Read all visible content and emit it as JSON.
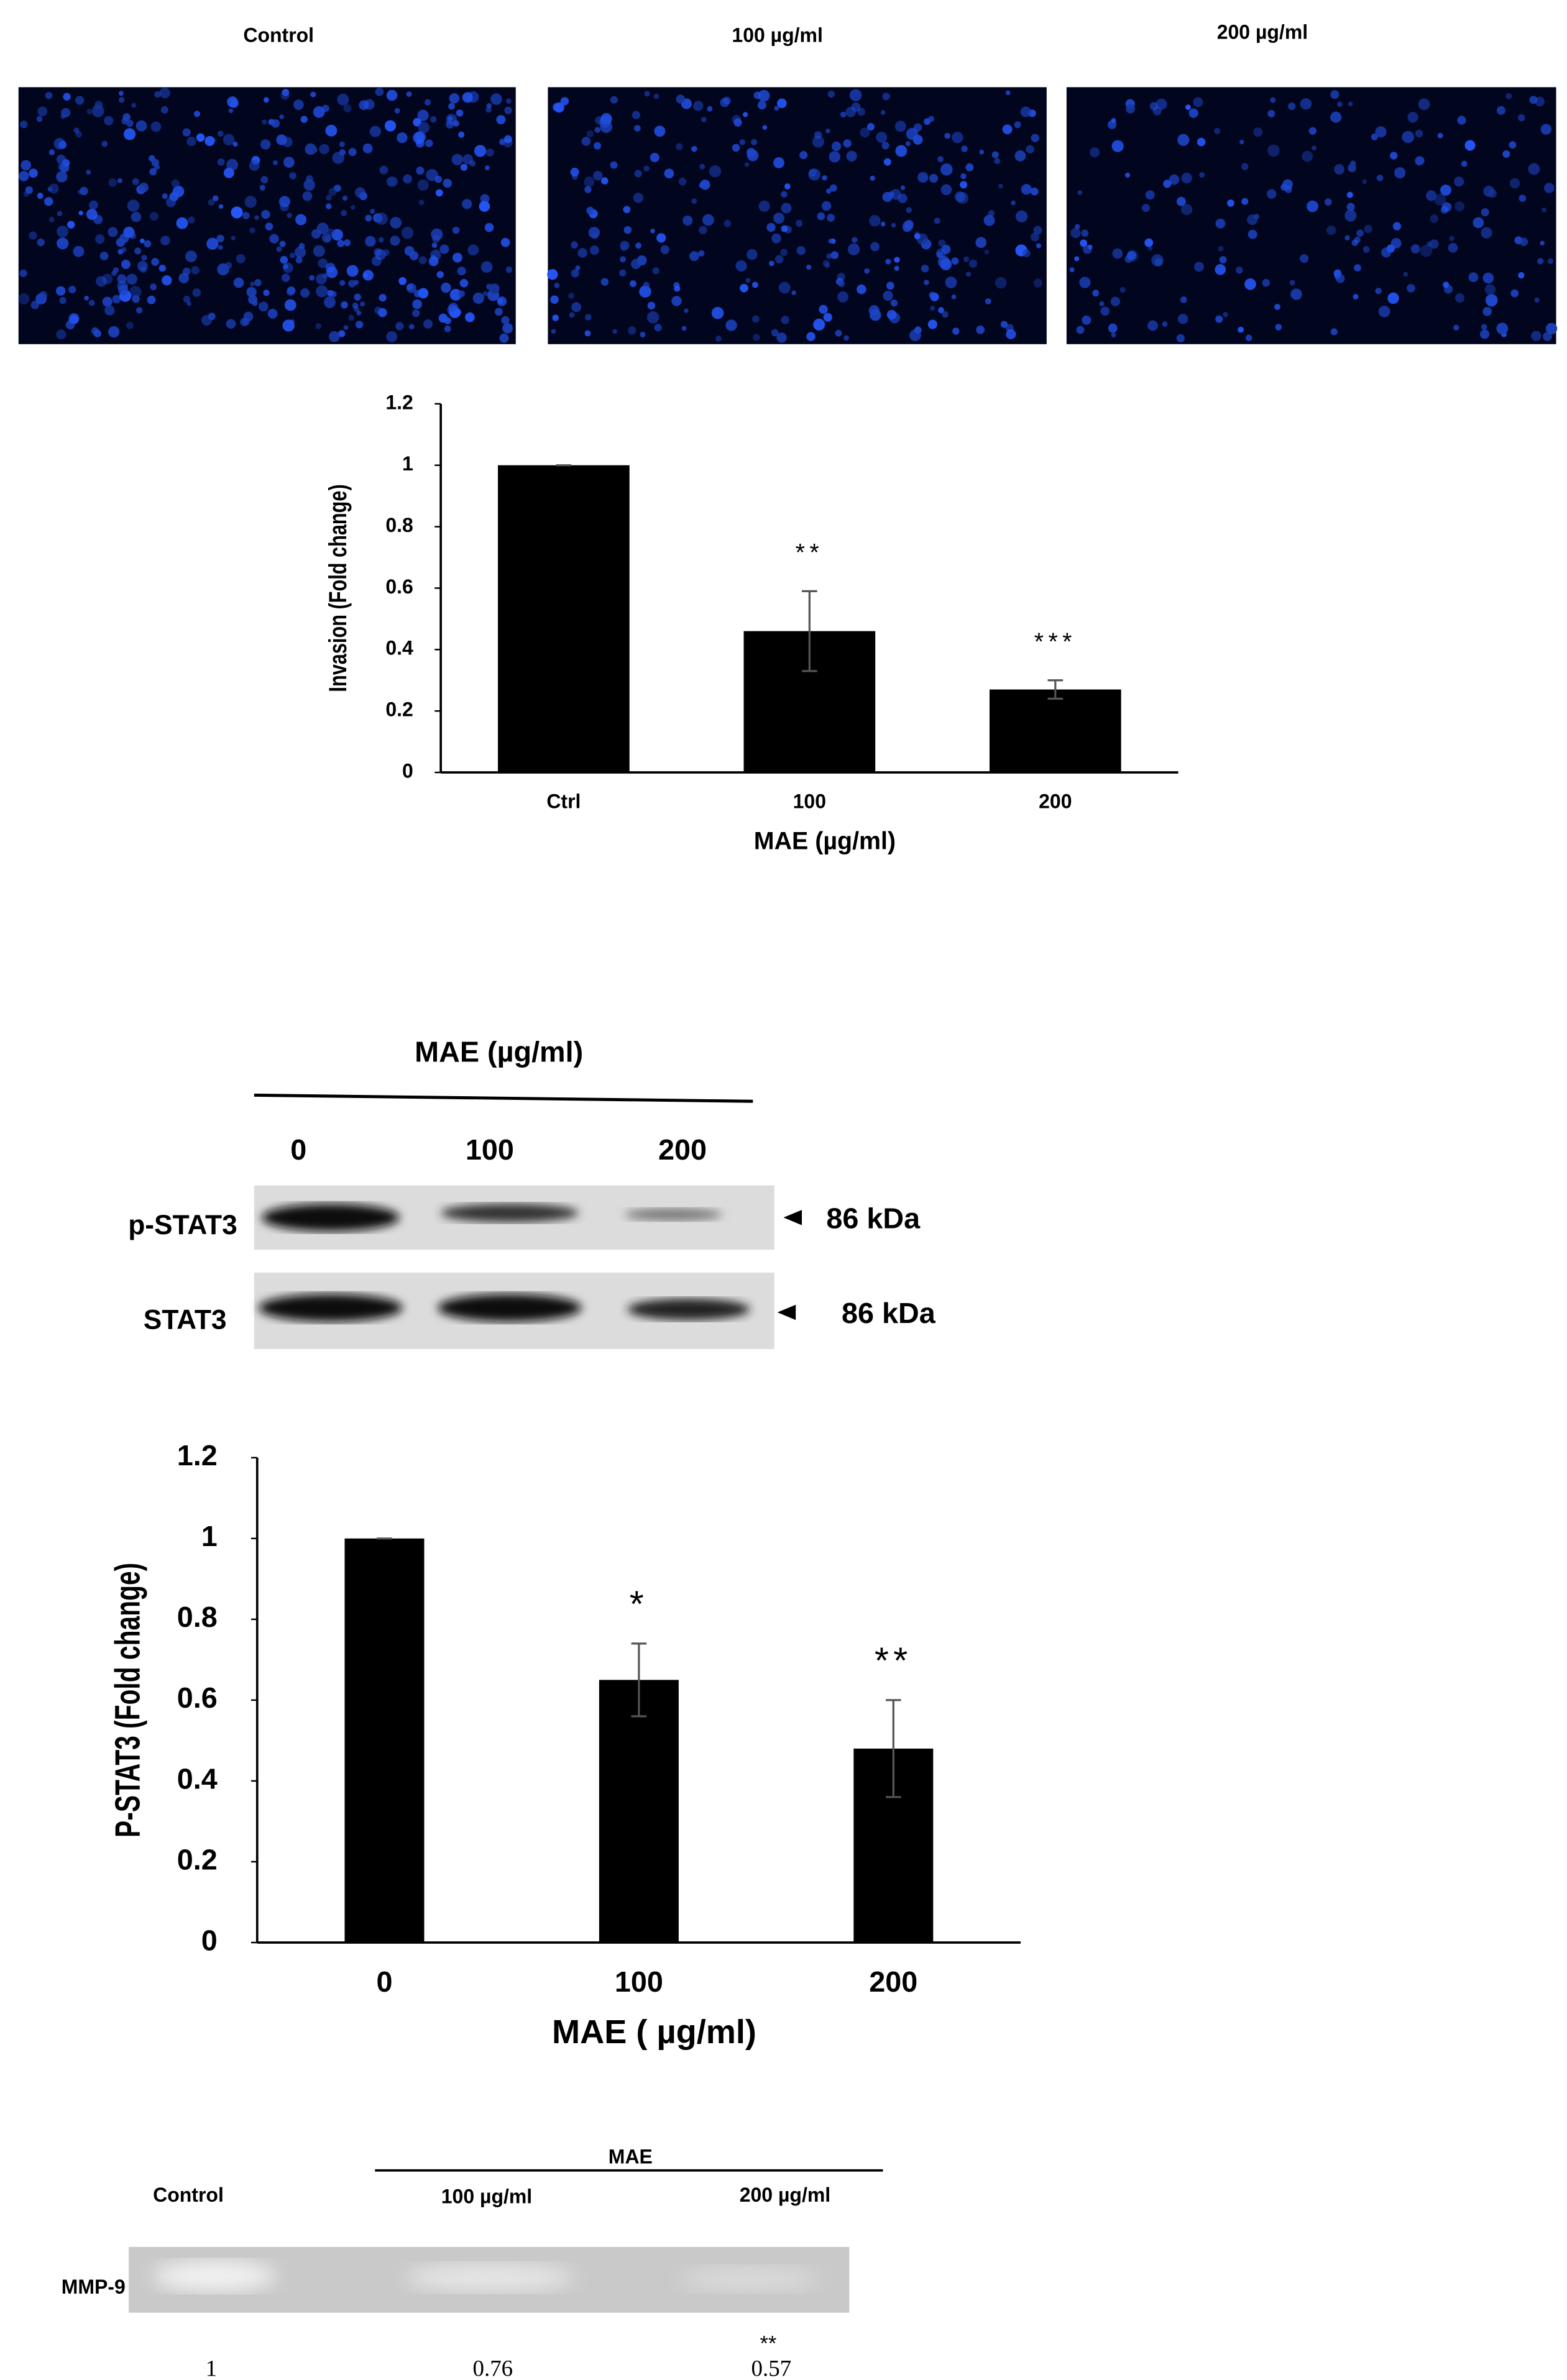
{
  "micrographs": {
    "labels": [
      "Control",
      "100 µg/ml",
      "200 µg/ml"
    ]
  },
  "chart_data": [
    {
      "type": "bar",
      "ylabel": "Invasion (Fold change)",
      "xlabel": "MAE (µg/ml)",
      "categories": [
        "Ctrl",
        "100",
        "200"
      ],
      "values": [
        1,
        0.46,
        0.27
      ],
      "errors": [
        0,
        0.13,
        0.03
      ],
      "annotations": [
        {
          "index": 1,
          "text": "**"
        },
        {
          "index": 2,
          "text": "***"
        }
      ],
      "color": "#000000",
      "ylim": [
        0,
        1.2
      ],
      "yticks": [
        0,
        0.2,
        0.4,
        0.6,
        0.8,
        1,
        1.2
      ]
    },
    {
      "type": "bar",
      "ylabel": "P-STAT3  (Fold change)",
      "xlabel": "MAE ( µg/ml)",
      "categories": [
        "0",
        "100",
        "200"
      ],
      "values": [
        1,
        0.65,
        0.48
      ],
      "errors": [
        0,
        0.09,
        0.12
      ],
      "annotations": [
        {
          "index": 1,
          "text": "*"
        },
        {
          "index": 2,
          "text": "**"
        }
      ],
      "color": "#000000",
      "ylim": [
        0,
        1.2
      ],
      "yticks": [
        0,
        0.2,
        0.4,
        0.6,
        0.8,
        1,
        1.2
      ]
    }
  ],
  "western": {
    "title": "MAE (µg/ml)",
    "lanes": [
      "0",
      "100",
      "200"
    ],
    "rows": [
      {
        "label": "p-STAT3",
        "size": "86 kDa"
      },
      {
        "label": "STAT3",
        "size": "86 kDa"
      }
    ]
  },
  "zymography": {
    "title": "MAE",
    "lanes": [
      "Control",
      "100 µg/ml",
      "200 µg/ml"
    ],
    "row": "MMP-9",
    "values": [
      1,
      0.76,
      0.57
    ],
    "annotations": [
      {
        "index": 2,
        "text": "**"
      }
    ]
  }
}
